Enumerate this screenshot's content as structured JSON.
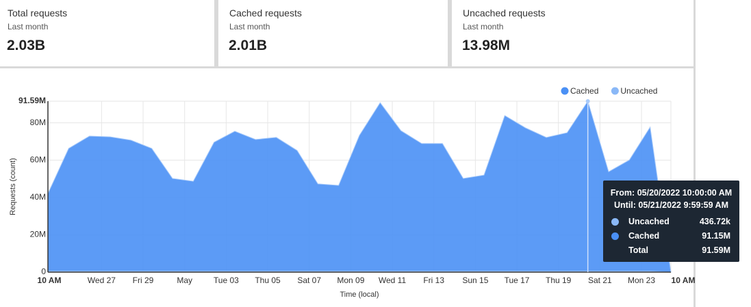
{
  "cards": [
    {
      "title": "Total requests",
      "subtitle": "Last month",
      "value": "2.03B"
    },
    {
      "title": "Cached requests",
      "subtitle": "Last month",
      "value": "2.01B"
    },
    {
      "title": "Uncached requests",
      "subtitle": "Last month",
      "value": "13.98M"
    }
  ],
  "chart_data": {
    "type": "area",
    "y_label": "Requests (count)",
    "x_label": "Time (local)",
    "x": [
      "2022-04-24T10:00",
      "2022-04-25T10:00",
      "2022-04-26T10:00",
      "2022-04-27T10:00",
      "2022-04-28T10:00",
      "2022-04-29T10:00",
      "2022-04-30T10:00",
      "2022-05-01T10:00",
      "2022-05-02T10:00",
      "2022-05-03T10:00",
      "2022-05-04T10:00",
      "2022-05-05T10:00",
      "2022-05-06T10:00",
      "2022-05-07T10:00",
      "2022-05-08T10:00",
      "2022-05-09T10:00",
      "2022-05-10T10:00",
      "2022-05-11T10:00",
      "2022-05-12T10:00",
      "2022-05-13T10:00",
      "2022-05-14T10:00",
      "2022-05-15T10:00",
      "2022-05-16T10:00",
      "2022-05-17T10:00",
      "2022-05-18T10:00",
      "2022-05-19T10:00",
      "2022-05-20T10:00",
      "2022-05-21T10:00",
      "2022-05-22T10:00",
      "2022-05-23T10:00",
      "2022-05-24T10:00"
    ],
    "series": [
      {
        "name": "Cached",
        "color": "#4a90f5",
        "values": [
          41650000,
          65850000,
          72450000,
          72050000,
          70250000,
          65850000,
          49750000,
          48250000,
          69150000,
          75050000,
          70650000,
          71750000,
          64750000,
          46850000,
          46050000,
          72850000,
          90350000,
          75350000,
          68450000,
          68450000,
          49750000,
          51550000,
          83450000,
          76850000,
          71750000,
          74250000,
          91150000,
          53350000,
          59650000,
          77250000,
          0
        ]
      },
      {
        "name": "Uncached",
        "color": "#8ab8f7",
        "values": [
          450000,
          450000,
          450000,
          450000,
          450000,
          450000,
          450000,
          450000,
          450000,
          450000,
          450000,
          450000,
          450000,
          450000,
          450000,
          450000,
          450000,
          450000,
          450000,
          450000,
          450000,
          450000,
          450000,
          450000,
          450000,
          450000,
          436720,
          450000,
          450000,
          450000,
          0
        ]
      }
    ],
    "xlim": [
      "2022-04-24T10:00",
      "2022-05-24T10:00"
    ],
    "xticks": [
      {
        "value": "2022-04-24T10:00",
        "label": "10 AM"
      },
      {
        "value": "2022-04-27T00:00",
        "label": "Wed 27"
      },
      {
        "value": "2022-04-29T00:00",
        "label": "Fri 29"
      },
      {
        "value": "2022-05-01T00:00",
        "label": "May"
      },
      {
        "value": "2022-05-03T00:00",
        "label": "Tue 03"
      },
      {
        "value": "2022-05-05T00:00",
        "label": "Thu 05"
      },
      {
        "value": "2022-05-07T00:00",
        "label": "Sat 07"
      },
      {
        "value": "2022-05-09T00:00",
        "label": "Mon 09"
      },
      {
        "value": "2022-05-11T00:00",
        "label": "Wed 11"
      },
      {
        "value": "2022-05-13T00:00",
        "label": "Fri 13"
      },
      {
        "value": "2022-05-15T00:00",
        "label": "Sun 15"
      },
      {
        "value": "2022-05-17T00:00",
        "label": "Tue 17"
      },
      {
        "value": "2022-05-19T00:00",
        "label": "Thu 19"
      },
      {
        "value": "2022-05-21T00:00",
        "label": "Sat 21"
      },
      {
        "value": "2022-05-23T00:00",
        "label": "Mon 23"
      },
      {
        "value": "2022-05-24T10:00",
        "label": "10 AM"
      }
    ],
    "ylim": [
      0,
      91590000
    ],
    "yticks": [
      0,
      {
        "value": 20000000,
        "label": "20M"
      },
      {
        "value": 40000000,
        "label": "40M"
      },
      {
        "value": 60000000,
        "label": "60M"
      },
      {
        "value": 80000000,
        "label": "80M"
      },
      {
        "value": 91590000,
        "label": "91.59M"
      }
    ],
    "grid": true,
    "legend": "top-right",
    "tooltip": {
      "x": "2022-05-20T10:00",
      "from_label": "From:",
      "from": "05/20/2022 10:00:00 AM",
      "until_label": "Until:",
      "until": "05/21/2022 9:59:59 AM",
      "rows": [
        {
          "name": "Uncached",
          "value": "436.72k"
        },
        {
          "name": "Cached",
          "value": "91.15M"
        }
      ],
      "total_label": "Total",
      "total": "91.59M"
    }
  }
}
